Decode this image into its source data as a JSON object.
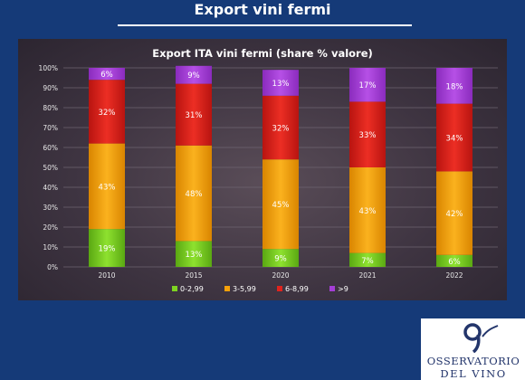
{
  "page": {
    "title": "Export vini fermi"
  },
  "chart_data": {
    "type": "bar",
    "stacked": true,
    "title": "Export ITA vini fermi (share % valore)",
    "categories": [
      "2010",
      "2015",
      "2020",
      "2021",
      "2022"
    ],
    "y_ticks": [
      "0%",
      "10%",
      "20%",
      "30%",
      "40%",
      "50%",
      "60%",
      "70%",
      "80%",
      "90%",
      "100%"
    ],
    "ylim": [
      0,
      100
    ],
    "legend_position": "bottom",
    "series": [
      {
        "name": "0-2,99",
        "color": "#7ed321",
        "values": [
          19,
          13,
          9,
          7,
          6
        ],
        "labels": [
          "19%",
          "13%",
          "9%",
          "7%",
          "6%"
        ]
      },
      {
        "name": "3-5,99",
        "color": "#f5a10a",
        "values": [
          43,
          48,
          45,
          43,
          42
        ],
        "labels": [
          "43%",
          "48%",
          "45%",
          "43%",
          "42%"
        ]
      },
      {
        "name": "6-8,99",
        "color": "#e0231d",
        "values": [
          32,
          31,
          32,
          33,
          34
        ],
        "labels": [
          "32%",
          "31%",
          "32%",
          "33%",
          "34%"
        ]
      },
      {
        "name": ">9",
        "color": "#a43ed6",
        "values": [
          6,
          9,
          13,
          17,
          18
        ],
        "labels": [
          "6%",
          "9%",
          "13%",
          "17%",
          "18%"
        ]
      }
    ]
  },
  "logo": {
    "line1": "OSSERVATORIO",
    "line2": "DEL VINO"
  }
}
